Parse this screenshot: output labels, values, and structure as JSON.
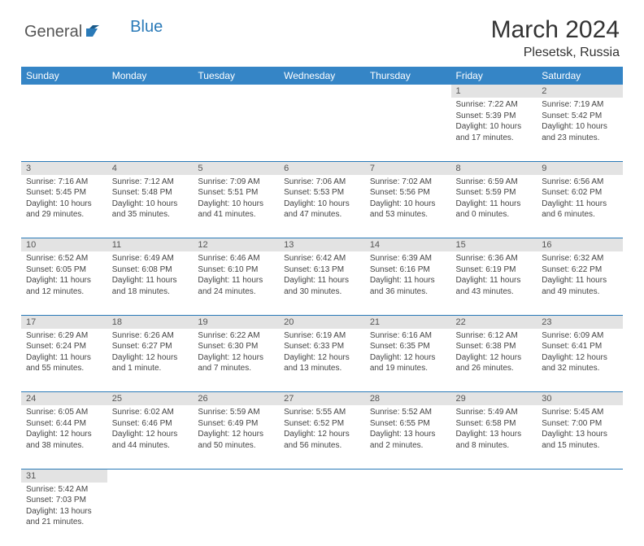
{
  "brand": {
    "general": "General",
    "blue": "Blue"
  },
  "title": "March 2024",
  "location": "Plesetsk, Russia",
  "colors": {
    "header_bg": "#3585c6",
    "header_text": "#ffffff",
    "daynum_bg": "#e3e3e3",
    "daynum_text": "#555555",
    "border": "#2a7ab8",
    "body_text": "#444444",
    "title_text": "#333333",
    "logo_accent": "#2a7ab8",
    "logo_gray": "#555555"
  },
  "weekdays": [
    "Sunday",
    "Monday",
    "Tuesday",
    "Wednesday",
    "Thursday",
    "Friday",
    "Saturday"
  ],
  "weeks": [
    [
      null,
      null,
      null,
      null,
      null,
      {
        "n": "1",
        "sr": "Sunrise: 7:22 AM",
        "ss": "Sunset: 5:39 PM",
        "d1": "Daylight: 10 hours",
        "d2": "and 17 minutes."
      },
      {
        "n": "2",
        "sr": "Sunrise: 7:19 AM",
        "ss": "Sunset: 5:42 PM",
        "d1": "Daylight: 10 hours",
        "d2": "and 23 minutes."
      }
    ],
    [
      {
        "n": "3",
        "sr": "Sunrise: 7:16 AM",
        "ss": "Sunset: 5:45 PM",
        "d1": "Daylight: 10 hours",
        "d2": "and 29 minutes."
      },
      {
        "n": "4",
        "sr": "Sunrise: 7:12 AM",
        "ss": "Sunset: 5:48 PM",
        "d1": "Daylight: 10 hours",
        "d2": "and 35 minutes."
      },
      {
        "n": "5",
        "sr": "Sunrise: 7:09 AM",
        "ss": "Sunset: 5:51 PM",
        "d1": "Daylight: 10 hours",
        "d2": "and 41 minutes."
      },
      {
        "n": "6",
        "sr": "Sunrise: 7:06 AM",
        "ss": "Sunset: 5:53 PM",
        "d1": "Daylight: 10 hours",
        "d2": "and 47 minutes."
      },
      {
        "n": "7",
        "sr": "Sunrise: 7:02 AM",
        "ss": "Sunset: 5:56 PM",
        "d1": "Daylight: 10 hours",
        "d2": "and 53 minutes."
      },
      {
        "n": "8",
        "sr": "Sunrise: 6:59 AM",
        "ss": "Sunset: 5:59 PM",
        "d1": "Daylight: 11 hours",
        "d2": "and 0 minutes."
      },
      {
        "n": "9",
        "sr": "Sunrise: 6:56 AM",
        "ss": "Sunset: 6:02 PM",
        "d1": "Daylight: 11 hours",
        "d2": "and 6 minutes."
      }
    ],
    [
      {
        "n": "10",
        "sr": "Sunrise: 6:52 AM",
        "ss": "Sunset: 6:05 PM",
        "d1": "Daylight: 11 hours",
        "d2": "and 12 minutes."
      },
      {
        "n": "11",
        "sr": "Sunrise: 6:49 AM",
        "ss": "Sunset: 6:08 PM",
        "d1": "Daylight: 11 hours",
        "d2": "and 18 minutes."
      },
      {
        "n": "12",
        "sr": "Sunrise: 6:46 AM",
        "ss": "Sunset: 6:10 PM",
        "d1": "Daylight: 11 hours",
        "d2": "and 24 minutes."
      },
      {
        "n": "13",
        "sr": "Sunrise: 6:42 AM",
        "ss": "Sunset: 6:13 PM",
        "d1": "Daylight: 11 hours",
        "d2": "and 30 minutes."
      },
      {
        "n": "14",
        "sr": "Sunrise: 6:39 AM",
        "ss": "Sunset: 6:16 PM",
        "d1": "Daylight: 11 hours",
        "d2": "and 36 minutes."
      },
      {
        "n": "15",
        "sr": "Sunrise: 6:36 AM",
        "ss": "Sunset: 6:19 PM",
        "d1": "Daylight: 11 hours",
        "d2": "and 43 minutes."
      },
      {
        "n": "16",
        "sr": "Sunrise: 6:32 AM",
        "ss": "Sunset: 6:22 PM",
        "d1": "Daylight: 11 hours",
        "d2": "and 49 minutes."
      }
    ],
    [
      {
        "n": "17",
        "sr": "Sunrise: 6:29 AM",
        "ss": "Sunset: 6:24 PM",
        "d1": "Daylight: 11 hours",
        "d2": "and 55 minutes."
      },
      {
        "n": "18",
        "sr": "Sunrise: 6:26 AM",
        "ss": "Sunset: 6:27 PM",
        "d1": "Daylight: 12 hours",
        "d2": "and 1 minute."
      },
      {
        "n": "19",
        "sr": "Sunrise: 6:22 AM",
        "ss": "Sunset: 6:30 PM",
        "d1": "Daylight: 12 hours",
        "d2": "and 7 minutes."
      },
      {
        "n": "20",
        "sr": "Sunrise: 6:19 AM",
        "ss": "Sunset: 6:33 PM",
        "d1": "Daylight: 12 hours",
        "d2": "and 13 minutes."
      },
      {
        "n": "21",
        "sr": "Sunrise: 6:16 AM",
        "ss": "Sunset: 6:35 PM",
        "d1": "Daylight: 12 hours",
        "d2": "and 19 minutes."
      },
      {
        "n": "22",
        "sr": "Sunrise: 6:12 AM",
        "ss": "Sunset: 6:38 PM",
        "d1": "Daylight: 12 hours",
        "d2": "and 26 minutes."
      },
      {
        "n": "23",
        "sr": "Sunrise: 6:09 AM",
        "ss": "Sunset: 6:41 PM",
        "d1": "Daylight: 12 hours",
        "d2": "and 32 minutes."
      }
    ],
    [
      {
        "n": "24",
        "sr": "Sunrise: 6:05 AM",
        "ss": "Sunset: 6:44 PM",
        "d1": "Daylight: 12 hours",
        "d2": "and 38 minutes."
      },
      {
        "n": "25",
        "sr": "Sunrise: 6:02 AM",
        "ss": "Sunset: 6:46 PM",
        "d1": "Daylight: 12 hours",
        "d2": "and 44 minutes."
      },
      {
        "n": "26",
        "sr": "Sunrise: 5:59 AM",
        "ss": "Sunset: 6:49 PM",
        "d1": "Daylight: 12 hours",
        "d2": "and 50 minutes."
      },
      {
        "n": "27",
        "sr": "Sunrise: 5:55 AM",
        "ss": "Sunset: 6:52 PM",
        "d1": "Daylight: 12 hours",
        "d2": "and 56 minutes."
      },
      {
        "n": "28",
        "sr": "Sunrise: 5:52 AM",
        "ss": "Sunset: 6:55 PM",
        "d1": "Daylight: 13 hours",
        "d2": "and 2 minutes."
      },
      {
        "n": "29",
        "sr": "Sunrise: 5:49 AM",
        "ss": "Sunset: 6:58 PM",
        "d1": "Daylight: 13 hours",
        "d2": "and 8 minutes."
      },
      {
        "n": "30",
        "sr": "Sunrise: 5:45 AM",
        "ss": "Sunset: 7:00 PM",
        "d1": "Daylight: 13 hours",
        "d2": "and 15 minutes."
      }
    ],
    [
      {
        "n": "31",
        "sr": "Sunrise: 5:42 AM",
        "ss": "Sunset: 7:03 PM",
        "d1": "Daylight: 13 hours",
        "d2": "and 21 minutes."
      },
      null,
      null,
      null,
      null,
      null,
      null
    ]
  ]
}
